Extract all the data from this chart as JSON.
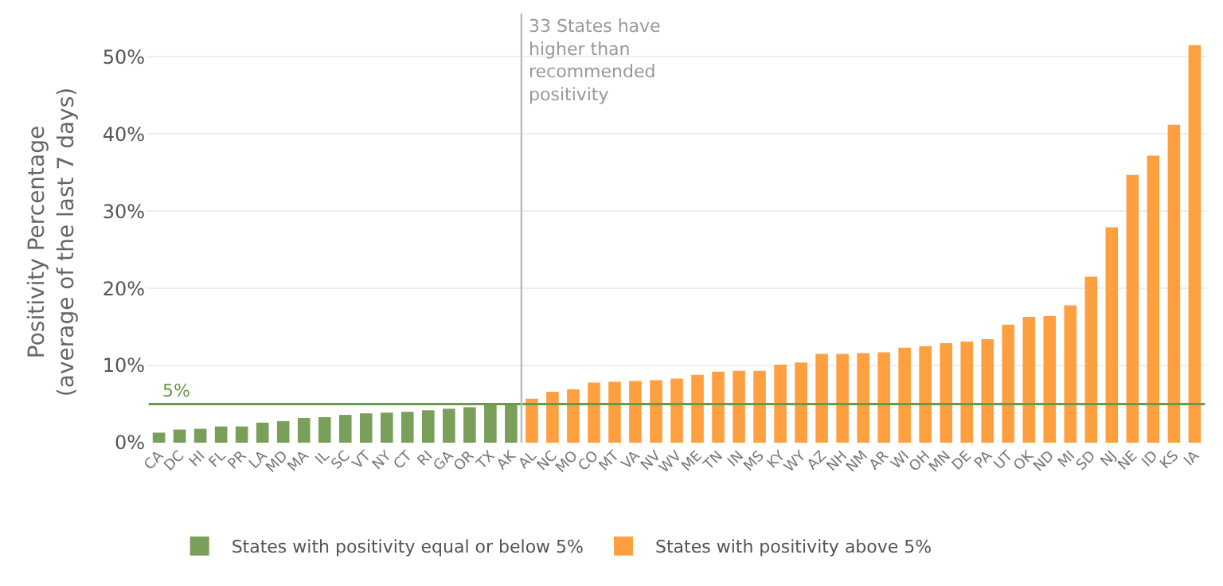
{
  "chart_data": {
    "type": "bar",
    "ylabel": "Positivity Percentage\n(average of the last 7 days)",
    "categories": [
      "CA",
      "DC",
      "HI",
      "FL",
      "PR",
      "LA",
      "MD",
      "MA",
      "IL",
      "SC",
      "VT",
      "NY",
      "CT",
      "RI",
      "GA",
      "OR",
      "TX",
      "AK",
      "AL",
      "NC",
      "MO",
      "CO",
      "MT",
      "VA",
      "NV",
      "WV",
      "ME",
      "TN",
      "IN",
      "MS",
      "KY",
      "WY",
      "AZ",
      "NH",
      "NM",
      "AR",
      "WI",
      "OH",
      "MN",
      "DE",
      "PA",
      "UT",
      "OK",
      "ND",
      "MI",
      "SD",
      "NJ",
      "NE",
      "ID",
      "KS",
      "IA"
    ],
    "series": [
      {
        "name": "States with positivity equal or below 5%",
        "color": "#7a9f5a",
        "values": [
          1.3,
          1.7,
          1.8,
          2.1,
          2.1,
          2.6,
          2.8,
          3.2,
          3.3,
          3.6,
          3.8,
          3.9,
          4.0,
          4.2,
          4.4,
          4.6,
          4.9,
          5.0,
          null,
          null,
          null,
          null,
          null,
          null,
          null,
          null,
          null,
          null,
          null,
          null,
          null,
          null,
          null,
          null,
          null,
          null,
          null,
          null,
          null,
          null,
          null,
          null,
          null,
          null,
          null,
          null,
          null,
          null,
          null,
          null,
          null
        ]
      },
      {
        "name": "States with positivity above 5%",
        "color": "#ffa040",
        "values": [
          null,
          null,
          null,
          null,
          null,
          null,
          null,
          null,
          null,
          null,
          null,
          null,
          null,
          null,
          null,
          null,
          null,
          null,
          5.7,
          6.6,
          6.9,
          7.8,
          7.9,
          8.0,
          8.1,
          8.3,
          8.8,
          9.2,
          9.3,
          9.3,
          10.1,
          10.4,
          11.5,
          11.5,
          11.6,
          11.7,
          12.3,
          12.5,
          12.9,
          13.1,
          13.4,
          15.3,
          16.3,
          16.4,
          17.8,
          21.5,
          27.9,
          34.7,
          37.2,
          41.2,
          51.5
        ]
      }
    ],
    "ylim": [
      0,
      52
    ],
    "yticks": [
      {
        "value": 0,
        "label": "0%"
      },
      {
        "value": 10,
        "label": "10%"
      },
      {
        "value": 20,
        "label": "20%"
      },
      {
        "value": 30,
        "label": "30%"
      },
      {
        "value": 40,
        "label": "40%"
      },
      {
        "value": 50,
        "label": "50%"
      }
    ],
    "ref_lines": [
      {
        "axis": "y",
        "value": 5,
        "label": "5%",
        "color": "#6a9a4a"
      },
      {
        "axis": "x",
        "value": "AL",
        "label": "33 States have\nhigher than\nrecommended\npositivity",
        "color": "#bbbbbb"
      }
    ],
    "grid": "y",
    "legend": "bottom"
  }
}
